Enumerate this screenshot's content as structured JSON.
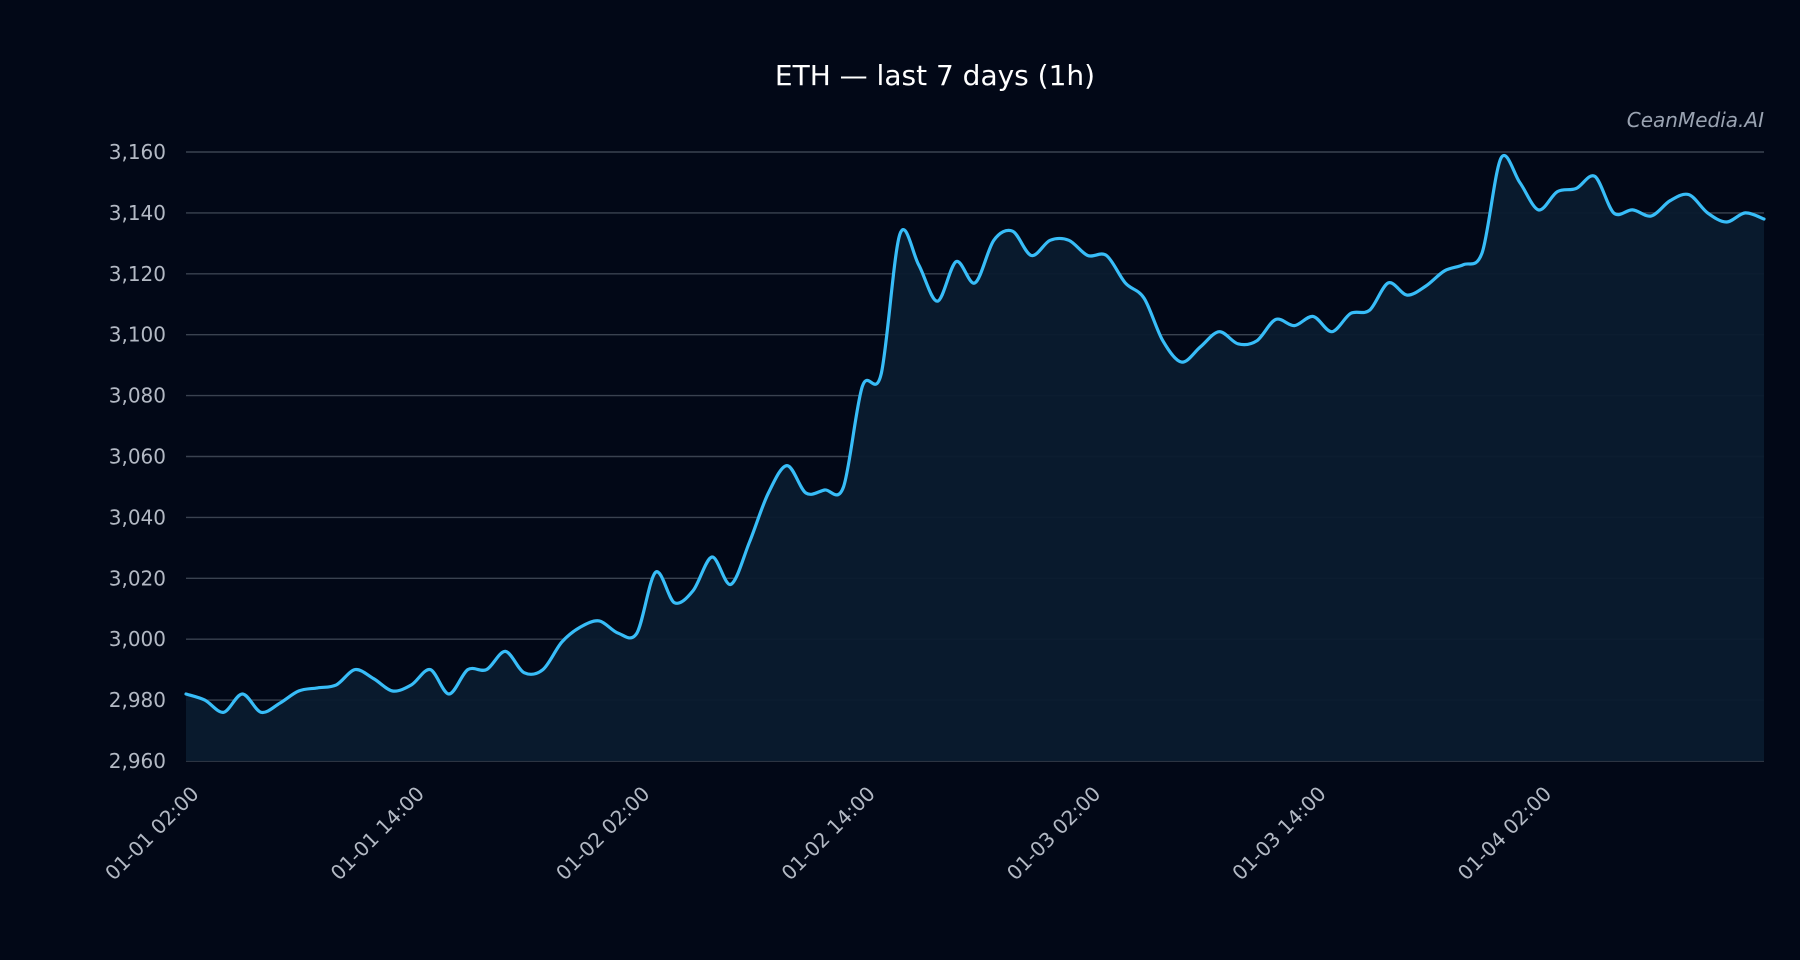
{
  "colors": {
    "background": "#020817",
    "line": "#38bdf8",
    "area": "#0a1b2e",
    "grid": "#3a4250",
    "text": "#b3b9c4"
  },
  "watermark": "CeanMedia.AI",
  "chart_data": {
    "type": "area",
    "title": "ETH — last 7 days (1h)",
    "xlabel": "",
    "ylabel": "",
    "grid": true,
    "ylim": [
      2960,
      3160
    ],
    "yticks": [
      2960,
      2980,
      3000,
      3020,
      3040,
      3060,
      3080,
      3100,
      3120,
      3140,
      3160
    ],
    "ytick_labels": [
      "2,960",
      "2,980",
      "3,000",
      "3,020",
      "3,040",
      "3,060",
      "3,080",
      "3,100",
      "3,120",
      "3,140",
      "3,160"
    ],
    "xtick_labels": [
      "01-01 02:00",
      "01-01 14:00",
      "01-02 02:00",
      "01-02 14:00",
      "01-03 02:00",
      "01-03 14:00",
      "01-04 02:00"
    ],
    "xtick_index": [
      0,
      12,
      24,
      36,
      48,
      60,
      72
    ],
    "series": [
      {
        "values": [
          2982,
          2980,
          2976,
          2982,
          2976,
          2979,
          2983,
          2984,
          2985,
          2990,
          2987,
          2983,
          2985,
          2990,
          2982,
          2990,
          2990,
          2996,
          2989,
          2990,
          2999,
          3004,
          3006,
          3002,
          3002,
          3022,
          3012,
          3016,
          3027,
          3018,
          3032,
          3048,
          3057,
          3048,
          3049,
          3050,
          3083,
          3087,
          3133,
          3123,
          3111,
          3124,
          3117,
          3131,
          3134,
          3126,
          3131,
          3131,
          3126,
          3126,
          3117,
          3112,
          3098,
          3091,
          3096,
          3101,
          3097,
          3098,
          3105,
          3103,
          3106,
          3101,
          3107,
          3108,
          3117,
          3113,
          3116,
          3121,
          3123,
          3127,
          3158,
          3150,
          3141,
          3147,
          3148,
          3152,
          3140,
          3141,
          3139,
          3144,
          3146,
          3140,
          3137,
          3140,
          3138
        ]
      }
    ]
  }
}
